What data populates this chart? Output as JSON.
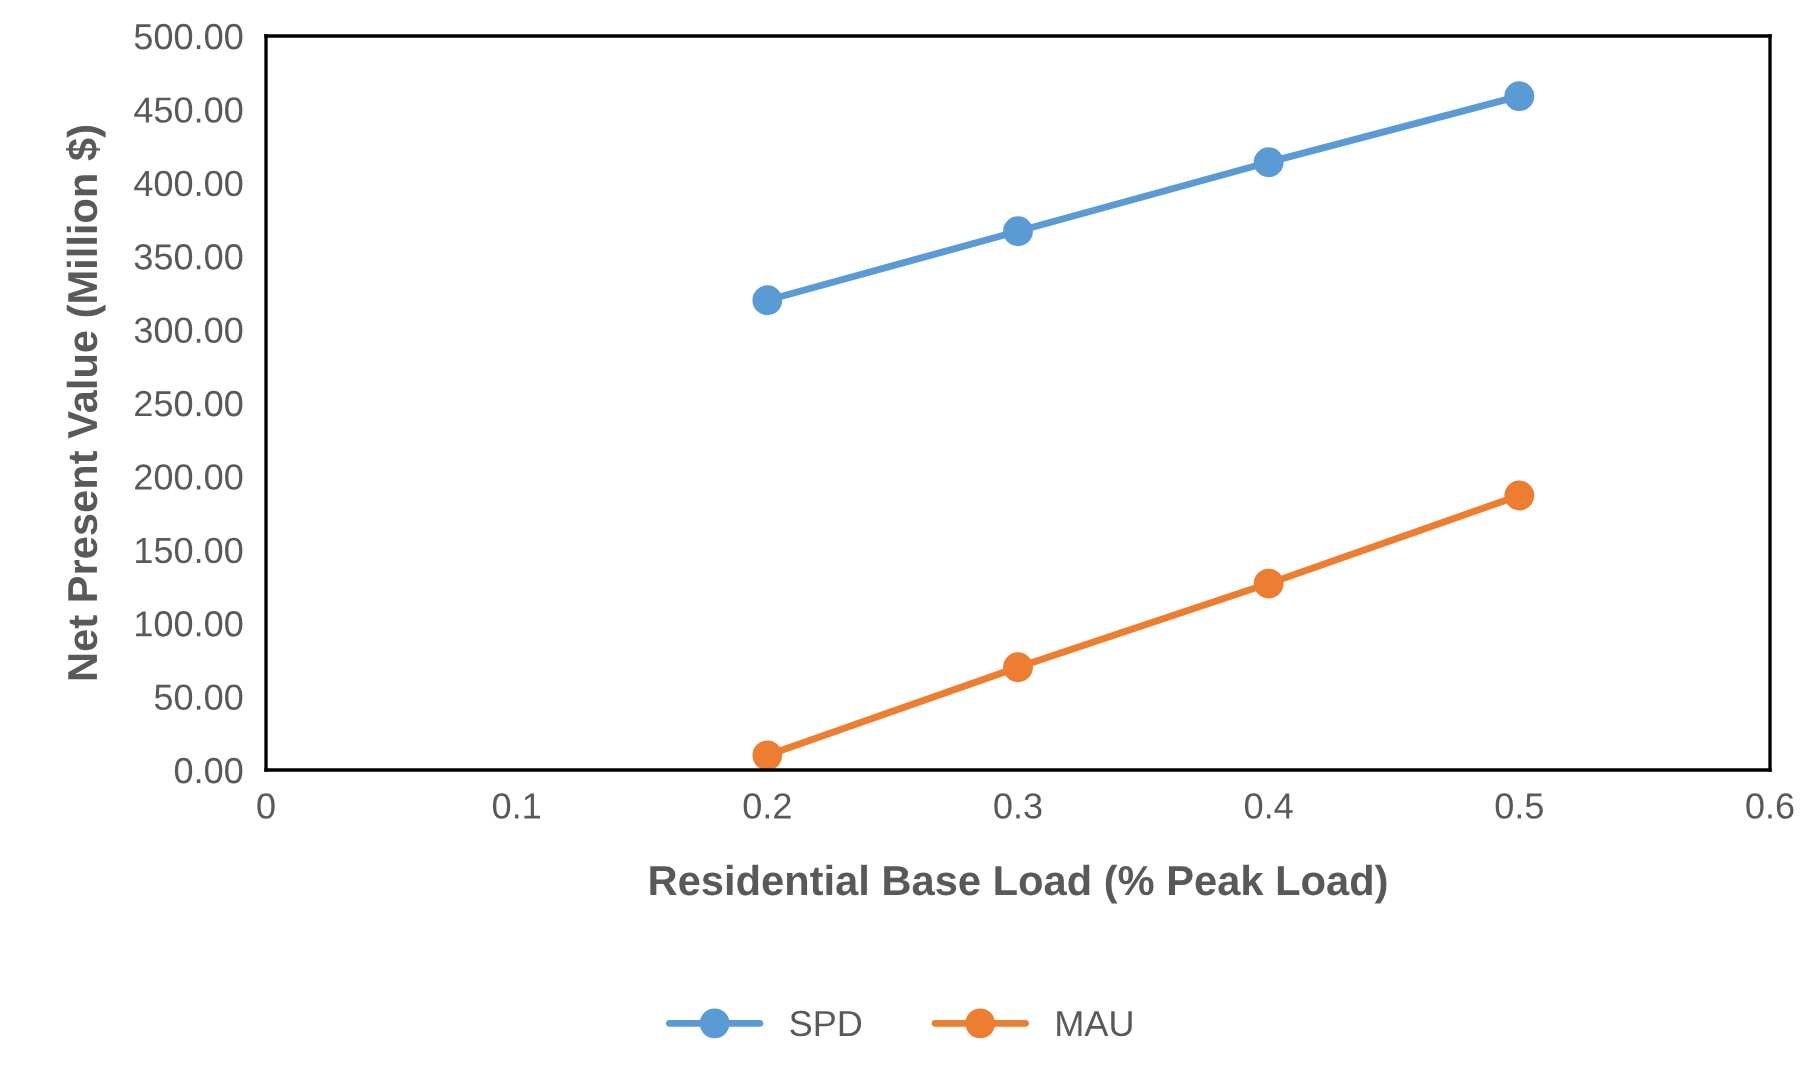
{
  "chart_data": {
    "type": "line",
    "xlabel": "Residential Base Load (% Peak Load)",
    "ylabel": "Net Present Value (Million $)",
    "x": [
      0.2,
      0.3,
      0.4,
      0.5
    ],
    "series": [
      {
        "name": "SPD",
        "color": "#5b9bd5",
        "values": [
          320,
          367,
          414,
          459
        ]
      },
      {
        "name": "MAU",
        "color": "#ed7d31",
        "values": [
          10,
          70,
          127,
          187
        ]
      }
    ],
    "xlim": [
      0,
      0.6
    ],
    "xticks": [
      0,
      0.1,
      0.2,
      0.3,
      0.4,
      0.5,
      0.6
    ],
    "ylim": [
      0,
      500
    ],
    "yticks": [
      {
        "value": 0,
        "label": "0.00"
      },
      {
        "value": 50,
        "label": "50.00"
      },
      {
        "value": 100,
        "label": "100.00"
      },
      {
        "value": 150,
        "label": "150.00"
      },
      {
        "value": 200,
        "label": "200.00"
      },
      {
        "value": 250,
        "label": "250.00"
      },
      {
        "value": 300,
        "label": "300.00"
      },
      {
        "value": 350,
        "label": "350.00"
      },
      {
        "value": 400,
        "label": "400.00"
      },
      {
        "value": 450,
        "label": "450.00"
      },
      {
        "value": 500,
        "label": "500.00"
      }
    ],
    "grid": false,
    "legend": "bottom",
    "marker": "circle",
    "line_style": "solid"
  }
}
